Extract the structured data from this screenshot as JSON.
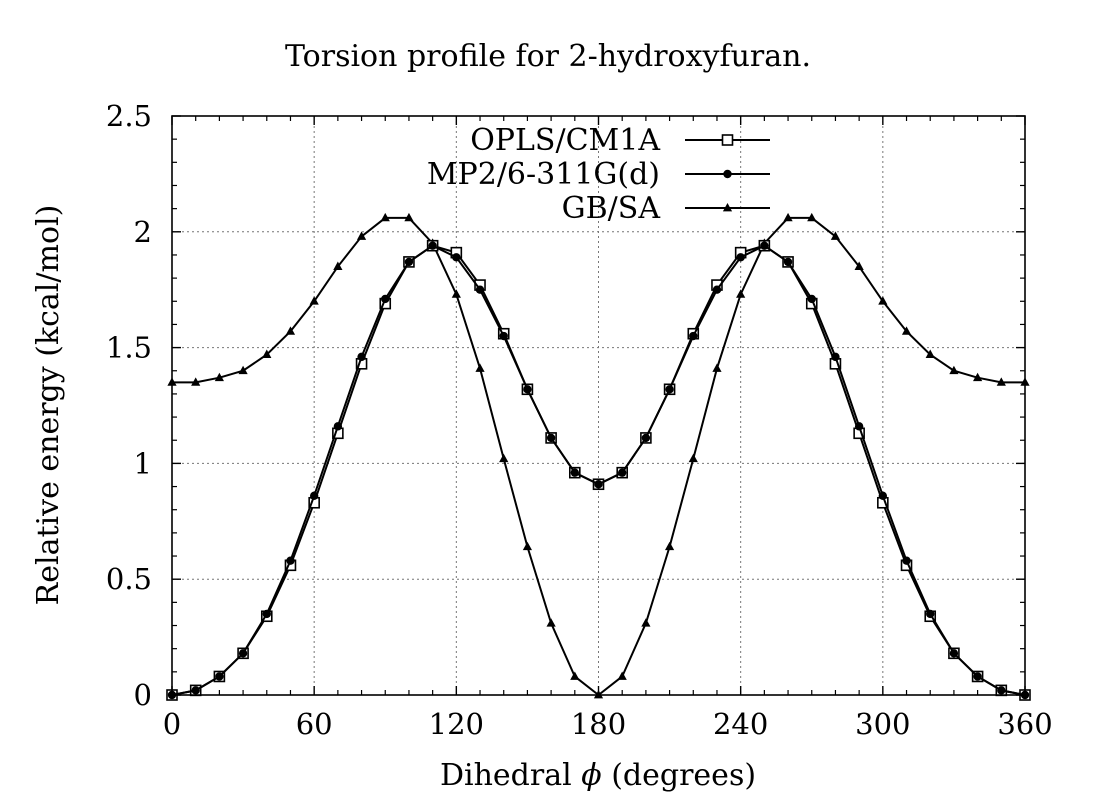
{
  "chart_data": {
    "type": "line",
    "title": "Torsion profile for 2-hydroxyfuran.",
    "xlabel_prefix": "Dihedral ",
    "xlabel_symbol": "ϕ",
    "xlabel_suffix": " (degrees)",
    "ylabel": "Relative energy (kcal/mol)",
    "xlim": [
      0,
      360
    ],
    "ylim": [
      0,
      2.5
    ],
    "xticks": [
      0,
      60,
      120,
      180,
      240,
      300,
      360
    ],
    "xtick_labels": [
      "0",
      "60",
      "120",
      "180",
      "240",
      "300",
      "360"
    ],
    "yticks": [
      0,
      0.5,
      1,
      1.5,
      2,
      2.5
    ],
    "ytick_labels": [
      "0",
      "0.5",
      "1",
      "1.5",
      "2",
      "2.5"
    ],
    "grid": true,
    "legend_position": "top-center",
    "x": [
      0,
      10,
      20,
      30,
      40,
      50,
      60,
      70,
      80,
      90,
      100,
      110,
      120,
      130,
      140,
      150,
      160,
      170,
      180,
      190,
      200,
      210,
      220,
      230,
      240,
      250,
      260,
      270,
      280,
      290,
      300,
      310,
      320,
      330,
      340,
      350,
      360
    ],
    "series": [
      {
        "name": "OPLS/CM1A",
        "marker": "open-square",
        "values": [
          0,
          0.02,
          0.08,
          0.18,
          0.34,
          0.56,
          0.83,
          1.13,
          1.43,
          1.69,
          1.87,
          1.94,
          1.91,
          1.77,
          1.56,
          1.32,
          1.11,
          0.96,
          0.91,
          0.96,
          1.11,
          1.32,
          1.56,
          1.77,
          1.91,
          1.94,
          1.87,
          1.69,
          1.43,
          1.13,
          0.83,
          0.56,
          0.34,
          0.18,
          0.08,
          0.02,
          0
        ]
      },
      {
        "name": "MP2/6-311G(d)",
        "marker": "filled-circle",
        "values": [
          0,
          0.02,
          0.08,
          0.18,
          0.35,
          0.58,
          0.86,
          1.16,
          1.46,
          1.71,
          1.87,
          1.94,
          1.89,
          1.75,
          1.55,
          1.32,
          1.11,
          0.96,
          0.91,
          0.96,
          1.11,
          1.32,
          1.55,
          1.75,
          1.89,
          1.94,
          1.87,
          1.71,
          1.46,
          1.16,
          0.86,
          0.58,
          0.35,
          0.18,
          0.08,
          0.02,
          0
        ]
      },
      {
        "name": "GB/SA",
        "marker": "filled-triangle",
        "values": [
          1.35,
          1.35,
          1.37,
          1.4,
          1.47,
          1.57,
          1.7,
          1.85,
          1.98,
          2.06,
          2.06,
          1.95,
          1.73,
          1.41,
          1.02,
          0.64,
          0.31,
          0.08,
          0,
          0.08,
          0.31,
          0.64,
          1.02,
          1.41,
          1.73,
          1.95,
          2.06,
          2.06,
          1.98,
          1.85,
          1.7,
          1.57,
          1.47,
          1.4,
          1.37,
          1.35,
          1.35
        ]
      }
    ]
  }
}
